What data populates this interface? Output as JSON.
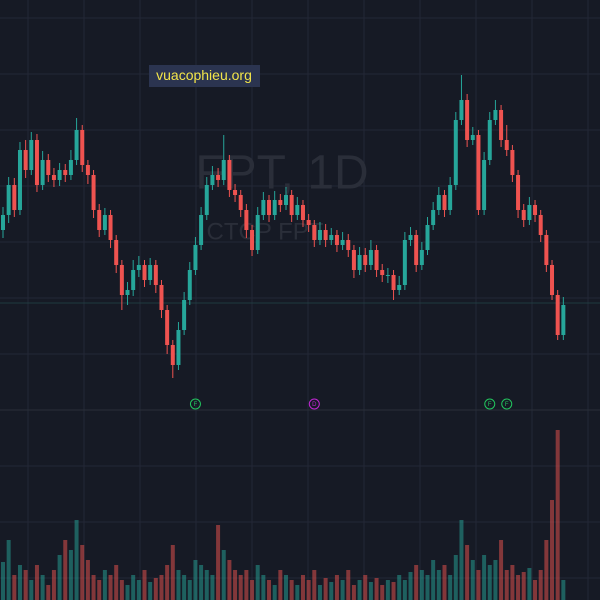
{
  "chart_data": {
    "type": "candlestick",
    "watermark": {
      "title": "FPT, 1D",
      "subtitle": "CTCP FPT"
    },
    "badge": "vuacophieu.org",
    "up_color": "#26a69a",
    "down_color": "#ef5350",
    "grid": true,
    "open": [
      117,
      118.5,
      121.5,
      119,
      125,
      123,
      126,
      121.5,
      124,
      122.5,
      122,
      123,
      122.5,
      124,
      127,
      123.5,
      122.5,
      119,
      117,
      118.5,
      116,
      113.5,
      110.5,
      111,
      113,
      113.5,
      112,
      113.5,
      111.5,
      109,
      105.5,
      103.5,
      107,
      110,
      113,
      115.5,
      118.5,
      121.5,
      122.5,
      122,
      124,
      121,
      120.5,
      119,
      117,
      115,
      118.5,
      120,
      118.5,
      120,
      119.5,
      120.5,
      118.5,
      119.5,
      118,
      117.5,
      116,
      117,
      116,
      116.5,
      115.5,
      116,
      115,
      113,
      114.5,
      113.5,
      115,
      113,
      112.5,
      112.5,
      111,
      111.5,
      116,
      116.5,
      113.5,
      115,
      117.5,
      119,
      120.5,
      119,
      121.5,
      128,
      130,
      126,
      126.5,
      119,
      124,
      128,
      129,
      126,
      125,
      122.5,
      119,
      118,
      119.5,
      118.5,
      116.5,
      113.5,
      110.5,
      106.5
    ],
    "high": [
      119.3,
      122.3,
      122.2,
      125.8,
      126,
      126.8,
      126.6,
      124.9,
      124.6,
      123.2,
      123.7,
      123.6,
      125,
      128.2,
      127.5,
      124,
      123,
      119.6,
      119.2,
      119,
      116.5,
      114,
      111.8,
      114,
      114.4,
      114,
      114.2,
      114,
      112,
      109.5,
      106,
      107.8,
      110.8,
      113.8,
      116.3,
      119.3,
      122.3,
      123.4,
      123.2,
      126.5,
      124.5,
      121.6,
      121,
      119.6,
      117.5,
      119.3,
      120.8,
      120.5,
      120.9,
      120.6,
      121.3,
      121,
      120.3,
      120,
      118.6,
      118,
      117.8,
      117.6,
      117.2,
      117,
      116.8,
      116.6,
      115.5,
      115.3,
      115.2,
      116,
      115.5,
      113.6,
      113.2,
      113,
      112.4,
      116.8,
      117.3,
      117,
      115.8,
      118.3,
      119.8,
      121.3,
      121,
      122.3,
      128.8,
      132.5,
      130.6,
      127.3,
      127,
      124.8,
      128.8,
      130,
      129.5,
      127.5,
      125.5,
      123,
      119.6,
      120.3,
      120,
      119,
      117,
      114,
      111,
      110.3
    ],
    "low": [
      116.2,
      117.7,
      118.3,
      118.5,
      122.2,
      122.5,
      120.8,
      121,
      121.8,
      121.3,
      121.4,
      121.8,
      122,
      123.5,
      122.8,
      121.6,
      118.2,
      116.3,
      116.5,
      115.2,
      112.7,
      109,
      109.5,
      110.4,
      112.3,
      111.3,
      111.5,
      110.7,
      108.2,
      104.6,
      102.2,
      103,
      106.5,
      109.5,
      112.5,
      115,
      118,
      121,
      121.3,
      121.5,
      120.3,
      119.8,
      118.3,
      116.2,
      114.4,
      114.6,
      118,
      117.8,
      118,
      118.8,
      119,
      117.8,
      118,
      117.3,
      116.8,
      115.3,
      115.5,
      115.3,
      115.5,
      114.8,
      115,
      114.3,
      112.2,
      112.5,
      112.8,
      113,
      112.3,
      111.8,
      111.7,
      110,
      110.5,
      111,
      115.4,
      112.8,
      113,
      114.5,
      117,
      118.5,
      118.3,
      118.5,
      121,
      127.5,
      125.3,
      125.5,
      118.5,
      118.5,
      123.5,
      127.5,
      125.3,
      124.4,
      121.8,
      118.2,
      117.3,
      117.5,
      117.8,
      115.8,
      112.8,
      110,
      106,
      106
    ],
    "close": [
      118.5,
      121.5,
      119,
      125,
      123,
      126,
      121.5,
      124,
      122.5,
      122,
      123,
      122.5,
      124,
      127,
      123.5,
      122.5,
      119,
      117,
      118.5,
      116,
      113.5,
      110.5,
      111,
      113,
      113.5,
      112,
      113.5,
      111.5,
      109,
      105.5,
      103.5,
      107,
      110,
      113,
      115.5,
      118.5,
      121.5,
      122.5,
      122,
      124,
      121,
      120.5,
      119,
      117,
      115,
      118.5,
      120,
      118.5,
      120,
      119.5,
      120.5,
      118.5,
      119.5,
      118,
      117.5,
      116,
      117,
      116,
      116.5,
      115.5,
      116,
      115,
      113,
      114.5,
      113.5,
      115,
      113,
      112.5,
      112.5,
      111,
      111.5,
      116,
      116.5,
      113.5,
      115,
      117.5,
      119,
      120.5,
      119,
      121.5,
      128,
      130,
      126,
      126.5,
      119,
      124,
      128,
      129,
      126,
      125,
      122.5,
      119,
      118,
      119.5,
      118.5,
      116.5,
      113.5,
      110.5,
      106.5,
      109.5
    ],
    "volume": [
      38,
      60,
      25,
      35,
      30,
      20,
      35,
      25,
      15,
      30,
      45,
      60,
      50,
      80,
      55,
      40,
      25,
      20,
      30,
      25,
      35,
      20,
      15,
      25,
      20,
      30,
      18,
      22,
      25,
      35,
      55,
      30,
      25,
      20,
      40,
      35,
      30,
      25,
      75,
      50,
      40,
      30,
      25,
      30,
      20,
      35,
      25,
      20,
      15,
      30,
      25,
      20,
      15,
      25,
      20,
      30,
      15,
      22,
      18,
      25,
      20,
      30,
      15,
      20,
      25,
      18,
      22,
      15,
      20,
      18,
      25,
      20,
      28,
      35,
      30,
      25,
      40,
      30,
      35,
      25,
      45,
      80,
      55,
      40,
      30,
      45,
      35,
      40,
      60,
      30,
      35,
      25,
      28,
      32,
      20,
      30,
      60,
      100,
      170,
      20
    ],
    "events": [
      {
        "index": 34,
        "label": "F",
        "color": "#22c55e"
      },
      {
        "index": 55,
        "label": "D",
        "color": "#c026d3"
      },
      {
        "index": 86,
        "label": "F",
        "color": "#22c55e"
      },
      {
        "index": 89,
        "label": "F",
        "color": "#22c55e"
      }
    ]
  }
}
